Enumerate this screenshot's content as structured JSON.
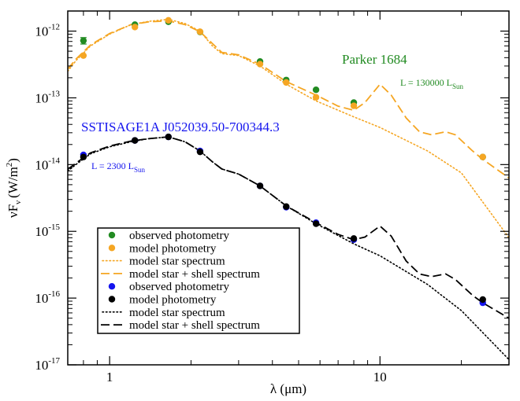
{
  "chart_data": {
    "type": "line",
    "xscale": "log",
    "yscale": "log",
    "xlim": [
      0.7,
      30
    ],
    "ylim": [
      1e-17,
      2e-12
    ],
    "xlabel": "λ (μm)",
    "ylabel_main": "νF",
    "ylabel_sub": "ν",
    "ylabel_unit": "(W/m",
    "ylabel_unit_sup": "2",
    "ylabel_close": ")",
    "xticks": [
      {
        "value": 1,
        "label": "1"
      },
      {
        "value": 10,
        "label": "10"
      }
    ],
    "yticks": [
      {
        "value": 1e-17,
        "base": "10",
        "exp": "-17"
      },
      {
        "value": 1e-16,
        "base": "10",
        "exp": "-16"
      },
      {
        "value": 1e-15,
        "base": "10",
        "exp": "-15"
      },
      {
        "value": 1e-14,
        "base": "10",
        "exp": "-14"
      },
      {
        "value": 1e-13,
        "base": "10",
        "exp": "-13"
      },
      {
        "value": 1e-12,
        "base": "10",
        "exp": "-12"
      }
    ],
    "colors": {
      "green": "#228B22",
      "orange": "#F5A623",
      "blue": "#1515EE",
      "black": "#000000"
    },
    "objects": [
      {
        "name": "Parker 1684",
        "luminosity_label": "L = 130000 L",
        "luminosity_sub": "Sun",
        "color": "#228B22",
        "observed_color": "#228B22",
        "model_color": "#F5A623",
        "observed_photometry": [
          {
            "x": 0.8,
            "y": 7.2e-13,
            "err": 8e-14
          },
          {
            "x": 1.24,
            "y": 1.25e-12
          },
          {
            "x": 1.65,
            "y": 1.38e-12
          },
          {
            "x": 2.16,
            "y": 9.7e-13
          },
          {
            "x": 3.6,
            "y": 3.5e-13
          },
          {
            "x": 4.5,
            "y": 1.85e-13
          },
          {
            "x": 5.8,
            "y": 1.32e-13
          },
          {
            "x": 8.0,
            "y": 8.5e-14
          },
          {
            "x": 24.0,
            "y": 1.3e-14
          }
        ],
        "model_photometry": [
          {
            "x": 0.8,
            "y": 4.3e-13
          },
          {
            "x": 1.24,
            "y": 1.15e-12
          },
          {
            "x": 1.65,
            "y": 1.45e-12
          },
          {
            "x": 2.16,
            "y": 9.8e-13
          },
          {
            "x": 3.6,
            "y": 3.2e-13
          },
          {
            "x": 4.5,
            "y": 1.7e-13
          },
          {
            "x": 5.8,
            "y": 1.02e-13
          },
          {
            "x": 8.0,
            "y": 7.6e-14
          },
          {
            "x": 24.0,
            "y": 1.3e-14
          }
        ],
        "star_spectrum": [
          {
            "x": 0.7,
            "y": 2.5e-13
          },
          {
            "x": 0.75,
            "y": 3.6e-13
          },
          {
            "x": 0.85,
            "y": 6e-13
          },
          {
            "x": 1.0,
            "y": 9e-13
          },
          {
            "x": 1.2,
            "y": 1.25e-12
          },
          {
            "x": 1.4,
            "y": 1.4e-12
          },
          {
            "x": 1.65,
            "y": 1.5e-12
          },
          {
            "x": 1.9,
            "y": 1.3e-12
          },
          {
            "x": 2.16,
            "y": 1e-12
          },
          {
            "x": 2.4,
            "y": 6e-13
          },
          {
            "x": 2.6,
            "y": 4.6e-13
          },
          {
            "x": 3.0,
            "y": 4.3e-13
          },
          {
            "x": 3.6,
            "y": 3e-13
          },
          {
            "x": 4.5,
            "y": 1.6e-13
          },
          {
            "x": 5.8,
            "y": 9e-14
          },
          {
            "x": 8.0,
            "y": 5.2e-14
          },
          {
            "x": 10.0,
            "y": 3.6e-14
          },
          {
            "x": 15.0,
            "y": 1.6e-14
          },
          {
            "x": 20.0,
            "y": 7.5e-15
          },
          {
            "x": 30.0,
            "y": 8e-16
          }
        ],
        "star_shell_spectrum": [
          {
            "x": 0.7,
            "y": 2.7e-13
          },
          {
            "x": 0.75,
            "y": 3.8e-13
          },
          {
            "x": 0.85,
            "y": 6.2e-13
          },
          {
            "x": 1.0,
            "y": 9.2e-13
          },
          {
            "x": 1.2,
            "y": 1.25e-12
          },
          {
            "x": 1.4,
            "y": 1.38e-12
          },
          {
            "x": 1.65,
            "y": 1.42e-12
          },
          {
            "x": 1.9,
            "y": 1.25e-12
          },
          {
            "x": 2.16,
            "y": 9.8e-13
          },
          {
            "x": 2.4,
            "y": 6.5e-13
          },
          {
            "x": 2.6,
            "y": 4.8e-13
          },
          {
            "x": 3.0,
            "y": 4.4e-13
          },
          {
            "x": 3.6,
            "y": 3.2e-13
          },
          {
            "x": 4.5,
            "y": 1.75e-13
          },
          {
            "x": 5.8,
            "y": 1.1e-13
          },
          {
            "x": 7.0,
            "y": 7.5e-14
          },
          {
            "x": 8.0,
            "y": 6.5e-14
          },
          {
            "x": 8.8,
            "y": 8.5e-14
          },
          {
            "x": 10.0,
            "y": 1.6e-13
          },
          {
            "x": 11.0,
            "y": 1.1e-13
          },
          {
            "x": 12.5,
            "y": 5e-14
          },
          {
            "x": 14.0,
            "y": 3.1e-14
          },
          {
            "x": 15.5,
            "y": 2.8e-14
          },
          {
            "x": 17.5,
            "y": 3.1e-14
          },
          {
            "x": 19.0,
            "y": 2.8e-14
          },
          {
            "x": 22.0,
            "y": 1.6e-14
          },
          {
            "x": 24.0,
            "y": 1.2e-14
          },
          {
            "x": 30.0,
            "y": 6.3e-15
          }
        ]
      },
      {
        "name": "SSTISAGE1A J052039.50-700344.3",
        "luminosity_label": "L = 2300 L",
        "luminosity_sub": "Sun",
        "color": "#1515EE",
        "observed_color": "#1515EE",
        "model_color": "#000000",
        "observed_photometry": [
          {
            "x": 0.8,
            "y": 1.4e-14
          },
          {
            "x": 1.24,
            "y": 2.3e-14
          },
          {
            "x": 1.65,
            "y": 2.6e-14
          },
          {
            "x": 2.16,
            "y": 1.6e-14
          },
          {
            "x": 3.6,
            "y": 4.8e-15
          },
          {
            "x": 4.5,
            "y": 2.3e-15
          },
          {
            "x": 5.8,
            "y": 1.35e-15
          },
          {
            "x": 8.0,
            "y": 7.5e-16
          },
          {
            "x": 24.0,
            "y": 8.5e-17
          }
        ],
        "model_photometry": [
          {
            "x": 0.8,
            "y": 1.3e-14
          },
          {
            "x": 1.24,
            "y": 2.3e-14
          },
          {
            "x": 1.65,
            "y": 2.6e-14
          },
          {
            "x": 2.16,
            "y": 1.55e-14
          },
          {
            "x": 3.6,
            "y": 4.8e-15
          },
          {
            "x": 4.5,
            "y": 2.35e-15
          },
          {
            "x": 5.8,
            "y": 1.3e-15
          },
          {
            "x": 8.0,
            "y": 7.8e-16
          },
          {
            "x": 24.0,
            "y": 9.5e-17
          }
        ],
        "star_spectrum": [
          {
            "x": 0.7,
            "y": 8e-15
          },
          {
            "x": 0.75,
            "y": 1e-14
          },
          {
            "x": 0.85,
            "y": 1.45e-14
          },
          {
            "x": 1.0,
            "y": 1.85e-14
          },
          {
            "x": 1.2,
            "y": 2.2e-14
          },
          {
            "x": 1.4,
            "y": 2.45e-14
          },
          {
            "x": 1.65,
            "y": 2.6e-14
          },
          {
            "x": 1.9,
            "y": 2.2e-14
          },
          {
            "x": 2.16,
            "y": 1.6e-14
          },
          {
            "x": 2.4,
            "y": 1.1e-14
          },
          {
            "x": 2.6,
            "y": 8.6e-15
          },
          {
            "x": 3.0,
            "y": 7.2e-15
          },
          {
            "x": 3.6,
            "y": 4.8e-15
          },
          {
            "x": 4.5,
            "y": 2.4e-15
          },
          {
            "x": 5.8,
            "y": 1.3e-15
          },
          {
            "x": 8.0,
            "y": 6.5e-16
          },
          {
            "x": 10.0,
            "y": 4.3e-16
          },
          {
            "x": 15.0,
            "y": 1.6e-16
          },
          {
            "x": 20.0,
            "y": 6.5e-17
          },
          {
            "x": 30.0,
            "y": 1.2e-17
          }
        ],
        "star_shell_spectrum": [
          {
            "x": 0.7,
            "y": 8.5e-15
          },
          {
            "x": 0.75,
            "y": 1.05e-14
          },
          {
            "x": 0.85,
            "y": 1.5e-14
          },
          {
            "x": 1.0,
            "y": 1.9e-14
          },
          {
            "x": 1.2,
            "y": 2.25e-14
          },
          {
            "x": 1.4,
            "y": 2.45e-14
          },
          {
            "x": 1.65,
            "y": 2.6e-14
          },
          {
            "x": 1.9,
            "y": 2.2e-14
          },
          {
            "x": 2.16,
            "y": 1.6e-14
          },
          {
            "x": 2.4,
            "y": 1.1e-14
          },
          {
            "x": 2.6,
            "y": 8.6e-15
          },
          {
            "x": 3.0,
            "y": 7.2e-15
          },
          {
            "x": 3.6,
            "y": 4.8e-15
          },
          {
            "x": 4.5,
            "y": 2.4e-15
          },
          {
            "x": 5.8,
            "y": 1.35e-15
          },
          {
            "x": 7.0,
            "y": 9e-16
          },
          {
            "x": 8.0,
            "y": 7.5e-16
          },
          {
            "x": 8.8,
            "y": 8.2e-16
          },
          {
            "x": 10.0,
            "y": 1.2e-15
          },
          {
            "x": 11.0,
            "y": 8.5e-16
          },
          {
            "x": 12.5,
            "y": 3.6e-16
          },
          {
            "x": 14.0,
            "y": 2.3e-16
          },
          {
            "x": 15.5,
            "y": 2.1e-16
          },
          {
            "x": 17.5,
            "y": 2.3e-16
          },
          {
            "x": 19.0,
            "y": 1.9e-16
          },
          {
            "x": 22.0,
            "y": 1.1e-16
          },
          {
            "x": 24.0,
            "y": 8.5e-17
          },
          {
            "x": 30.0,
            "y": 5e-17
          }
        ]
      }
    ],
    "legend": {
      "placement": "lower-left",
      "entries": [
        {
          "label": "observed photometry",
          "kind": "dot",
          "color": "#228B22"
        },
        {
          "label": "model photometry",
          "kind": "dot",
          "color": "#F5A623"
        },
        {
          "label": "model star spectrum",
          "kind": "dotted",
          "color": "#F5A623"
        },
        {
          "label": "model star + shell spectrum",
          "kind": "dashed",
          "color": "#F5A623"
        },
        {
          "label": "observed photometry",
          "kind": "dot",
          "color": "#1515EE"
        },
        {
          "label": "model photometry",
          "kind": "dot",
          "color": "#000000"
        },
        {
          "label": "model star spectrum",
          "kind": "dotted",
          "color": "#000000"
        },
        {
          "label": "model star + shell spectrum",
          "kind": "dashed",
          "color": "#000000"
        }
      ]
    }
  }
}
